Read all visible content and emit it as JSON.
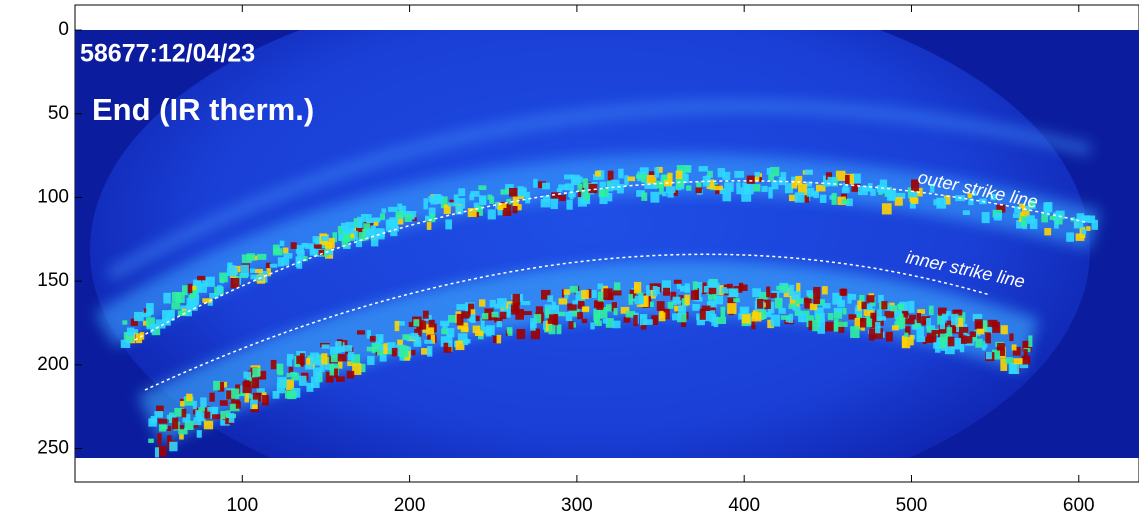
{
  "chart_data": {
    "type": "image",
    "labels": {
      "shot": "58677:12/04/23",
      "title": "End (IR therm.)",
      "outer": "outer strike line",
      "inner": "inner strike line"
    },
    "xlim": [
      0,
      636
    ],
    "xticks": [
      100,
      200,
      300,
      400,
      500,
      600
    ],
    "ylim": [
      -15,
      270
    ],
    "y_reversed": true,
    "yticks": [
      0,
      50,
      100,
      150,
      200,
      250
    ]
  }
}
